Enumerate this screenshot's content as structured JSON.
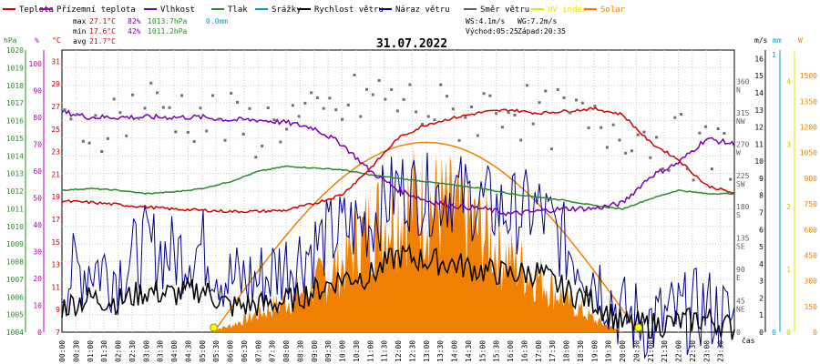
{
  "chart_data": {
    "type": "line",
    "title": "31.07.2022",
    "legend": [
      {
        "name": "Teplota",
        "color": "#d40000"
      },
      {
        "name": "Přízemní teplota",
        "color": "#b400b4"
      },
      {
        "name": "Vlhkost",
        "color": "#7a00b4"
      },
      {
        "name": "Tlak",
        "color": "#2a8a2a"
      },
      {
        "name": "Srážky",
        "color": "#00a0c8"
      },
      {
        "name": "Rychlost větru",
        "color": "#000000"
      },
      {
        "name": "Náraz větru",
        "color": "#00008c"
      },
      {
        "name": "Směr větru",
        "color": "#606060"
      },
      {
        "name": "UV index",
        "color": "#e6e600"
      },
      {
        "name": "Solar",
        "color": "#f08000"
      }
    ],
    "stats": {
      "max_label": "max",
      "max_temp": "27.1°C",
      "max_hum": "82%",
      "max_press": "1013.7hPa",
      "rain": "0.0mm",
      "min_label": "min",
      "min_temp": "17.6°C",
      "min_hum": "42%",
      "min_press": "1011.2hPa",
      "avg_label": "avg",
      "avg_temp": "21.7°C",
      "ws": "WS:4.1m/s",
      "wg": "WG:7.2m/s",
      "sunrise": "Východ:05:25",
      "sunset": "Západ:20:35"
    },
    "units": {
      "hpa": "hPa",
      "pct": "%",
      "degc": "°C",
      "ms": "m/s",
      "mm": "mm",
      "w": "W",
      "cas": "čas"
    },
    "axes": {
      "hpa_ticks": [
        "1020",
        "1019",
        "1018",
        "1017",
        "1016",
        "1015",
        "1014",
        "1013",
        "1012",
        "1011",
        "1010",
        "1009",
        "1008",
        "1007",
        "1006",
        "1005",
        "1004"
      ],
      "pct_ticks": [
        "100",
        "90",
        "80",
        "70",
        "60",
        "50",
        "40",
        "30",
        "20",
        "10",
        "0"
      ],
      "degc_ticks": [
        "31",
        "29",
        "27",
        "25",
        "23",
        "21",
        "19",
        "17",
        "15",
        "13",
        "11",
        "9",
        "7"
      ],
      "dir_ticks": [
        "360\nN",
        "315\nNW",
        "270\nW",
        "225\nSW",
        "180\nS",
        "135\nSE",
        "90\nE",
        "45\nNE",
        "0"
      ],
      "ms_ticks": [
        "16",
        "15",
        "14",
        "13",
        "12",
        "11",
        "10",
        "9",
        "8",
        "7",
        "6",
        "5",
        "4",
        "3",
        "2",
        "1",
        "0"
      ],
      "mm_ticks": [
        "1",
        "0"
      ],
      "uv_ticks": [
        "4",
        "3",
        "2",
        "1",
        "0"
      ],
      "w_ticks": [
        "1500",
        "1350",
        "1200",
        "1050",
        "900",
        "750",
        "600",
        "450",
        "300",
        "150",
        "0"
      ],
      "time_ticks": [
        "00:00",
        "00:30",
        "01:00",
        "01:30",
        "02:00",
        "02:30",
        "03:00",
        "03:30",
        "04:00",
        "04:30",
        "05:00",
        "05:30",
        "06:00",
        "06:30",
        "07:00",
        "07:30",
        "08:00",
        "08:30",
        "09:00",
        "09:30",
        "10:00",
        "10:30",
        "11:00",
        "11:30",
        "12:00",
        "12:30",
        "13:00",
        "13:30",
        "14:00",
        "14:30",
        "15:00",
        "15:30",
        "16:00",
        "16:30",
        "17:00",
        "17:30",
        "18:00",
        "18:30",
        "19:00",
        "19:30",
        "20:00",
        "20:30",
        "21:00",
        "21:30",
        "22:00",
        "22:30",
        "23:00",
        "23:30"
      ],
      "temp_range": [
        7,
        32
      ],
      "humidity_range": [
        0,
        105
      ],
      "pressure_range": [
        1004,
        1020.5
      ],
      "wind_range": [
        0,
        16.5
      ],
      "solar_range": [
        0,
        1650
      ]
    },
    "series": [
      {
        "name": "Teplota",
        "unit": "°C",
        "x": [
          0,
          1,
          2,
          3,
          4,
          5,
          6,
          7,
          8,
          9,
          10,
          11,
          12,
          13,
          14,
          15,
          16,
          17,
          18,
          19,
          20,
          21,
          22,
          23,
          24
        ],
        "values": [
          18.6,
          18.5,
          18.3,
          18.1,
          17.9,
          17.8,
          17.7,
          17.7,
          17.8,
          18.4,
          19.2,
          21.5,
          24.2,
          25.4,
          26.0,
          26.5,
          26.7,
          26.4,
          26.6,
          26.8,
          26.3,
          23.8,
          22.3,
          20.0,
          19.3
        ]
      },
      {
        "name": "Vlhkost",
        "unit": "%",
        "x": [
          0,
          1,
          2,
          3,
          4,
          5,
          6,
          7,
          8,
          9,
          10,
          11,
          12,
          13,
          14,
          15,
          16,
          17,
          18,
          19,
          20,
          21,
          22,
          23,
          24
        ],
        "values": [
          82,
          80,
          80,
          80,
          80,
          80,
          79,
          79,
          78,
          76,
          70,
          60,
          53,
          49,
          47,
          46,
          44,
          45,
          46,
          46,
          48,
          58,
          63,
          72,
          70
        ]
      },
      {
        "name": "Tlak",
        "unit": "hPa",
        "x": [
          0,
          1,
          2,
          3,
          4,
          5,
          6,
          7,
          8,
          9,
          10,
          11,
          12,
          13,
          14,
          15,
          16,
          17,
          18,
          19,
          20,
          21,
          22,
          23,
          24
        ],
        "values": [
          1012.3,
          1012.4,
          1012.3,
          1012.1,
          1012.2,
          1012.4,
          1012.8,
          1013.4,
          1013.7,
          1013.6,
          1013.5,
          1013.2,
          1013.0,
          1012.8,
          1012.6,
          1012.4,
          1012.1,
          1011.9,
          1011.7,
          1011.4,
          1011.2,
          1011.8,
          1012.3,
          1012.1,
          1012.1
        ]
      },
      {
        "name": "Rychlost větru",
        "unit": "m/s",
        "x": [
          0,
          1,
          2,
          3,
          4,
          5,
          6,
          7,
          8,
          9,
          10,
          11,
          12,
          13,
          14,
          15,
          16,
          17,
          18,
          19,
          20,
          21,
          22,
          23,
          24
        ],
        "values": [
          1.5,
          2,
          1.8,
          2.4,
          2.2,
          2.5,
          1.5,
          1.6,
          1.8,
          2.4,
          3.2,
          3.3,
          4.5,
          4.2,
          4.0,
          3.6,
          3.4,
          3.5,
          2.4,
          1.8,
          0.5,
          0.4,
          0.6,
          0.8,
          0.2
        ]
      },
      {
        "name": "Náraz větru",
        "unit": "m/s",
        "x": [
          0,
          1,
          2,
          3,
          4,
          5,
          6,
          7,
          8,
          9,
          10,
          11,
          12,
          13,
          14,
          15,
          16,
          17,
          18,
          19,
          20,
          21,
          22,
          23,
          24
        ],
        "values": [
          3,
          4,
          3.5,
          5,
          4.5,
          5,
          3,
          3,
          4,
          5,
          6,
          6.5,
          8.5,
          8,
          8.2,
          7.5,
          7,
          7.2,
          5,
          3.5,
          1,
          0.6,
          1,
          1.5,
          0.6
        ]
      },
      {
        "name": "Solar",
        "unit": "W",
        "x": [
          5,
          6,
          7,
          8,
          9,
          10,
          11,
          12,
          13,
          14,
          15,
          16,
          17,
          18,
          19,
          20
        ],
        "values": [
          0,
          50,
          150,
          250,
          380,
          550,
          850,
          1000,
          1050,
          950,
          800,
          580,
          450,
          260,
          100,
          0
        ]
      },
      {
        "name": "Směr větru",
        "unit": "°",
        "x": [
          0,
          1,
          2,
          3,
          4,
          5,
          6,
          7,
          8,
          9,
          10,
          11,
          12,
          13,
          14,
          15,
          16,
          17,
          18,
          19,
          20,
          21,
          22,
          23,
          24
        ],
        "values": [
          280,
          300,
          310,
          330,
          320,
          310,
          300,
          290,
          310,
          300,
          320,
          340,
          330,
          320,
          310,
          320,
          330,
          300,
          310,
          290,
          300,
          280,
          270,
          255,
          260
        ]
      }
    ],
    "markers": {
      "sunrise_hour": 5.42,
      "sunset_hour": 20.58
    }
  }
}
